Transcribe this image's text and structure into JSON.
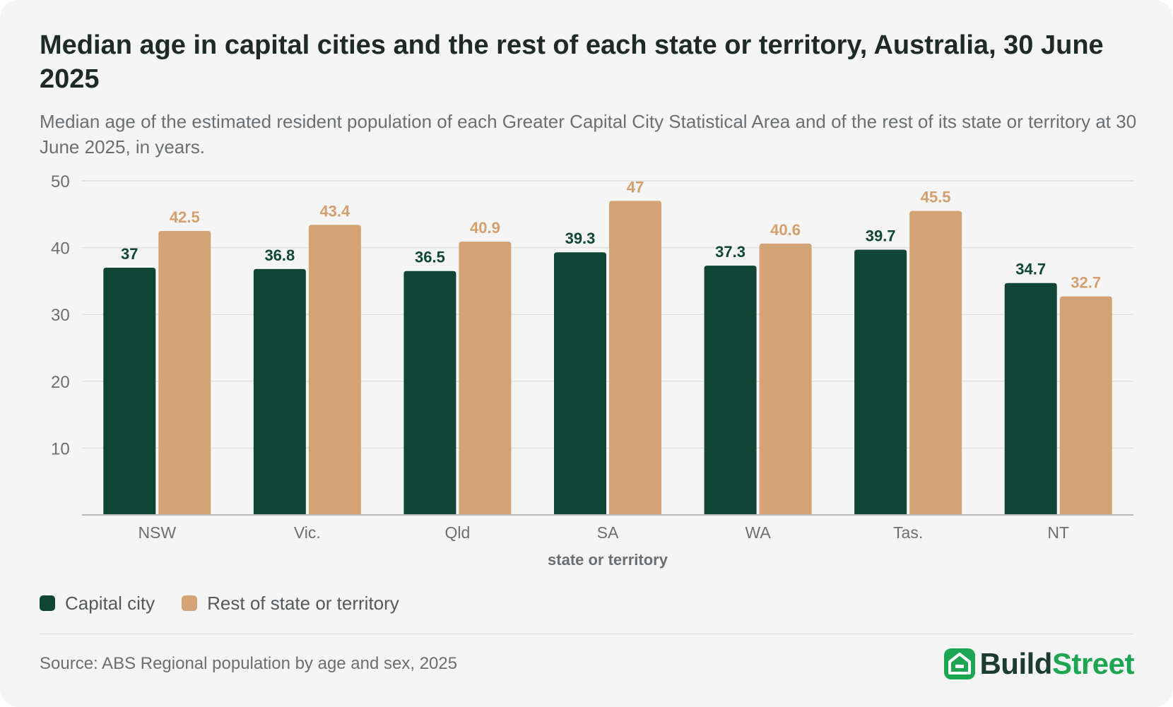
{
  "header": {
    "title": "Median age in capital cities and the rest of each state or territory, Australia, 30 June 2025",
    "subtitle": "Median age of the estimated resident population of each Greater Capital City Statistical Area and of the rest of its state or territory at 30 June 2025, in years."
  },
  "chart_data": {
    "type": "bar",
    "title": "Median age in capital cities and the rest of each state or territory, Australia, 30 June 2025",
    "xlabel": "state or territory",
    "ylabel": "",
    "ylim": [
      0,
      50
    ],
    "yticks": [
      10,
      20,
      30,
      40,
      50
    ],
    "grid": true,
    "legend_position": "bottom-left",
    "categories": [
      "NSW",
      "Vic.",
      "Qld",
      "SA",
      "WA",
      "Tas.",
      "NT"
    ],
    "series": [
      {
        "name": "Capital city",
        "color": "#0f4636",
        "label_color": "#0f4636",
        "values": [
          37,
          36.8,
          36.5,
          39.3,
          37.3,
          39.7,
          34.7
        ]
      },
      {
        "name": "Rest of state or territory",
        "color": "#d4a373",
        "label_color": "#d49f6c",
        "values": [
          42.5,
          43.4,
          40.9,
          47,
          40.6,
          45.5,
          32.7
        ]
      }
    ]
  },
  "footer": {
    "source": "Source: ABS Regional population by age and sex, 2025",
    "brand_part1": "Build",
    "brand_part2": "Street",
    "brand_icon": "house-icon"
  }
}
